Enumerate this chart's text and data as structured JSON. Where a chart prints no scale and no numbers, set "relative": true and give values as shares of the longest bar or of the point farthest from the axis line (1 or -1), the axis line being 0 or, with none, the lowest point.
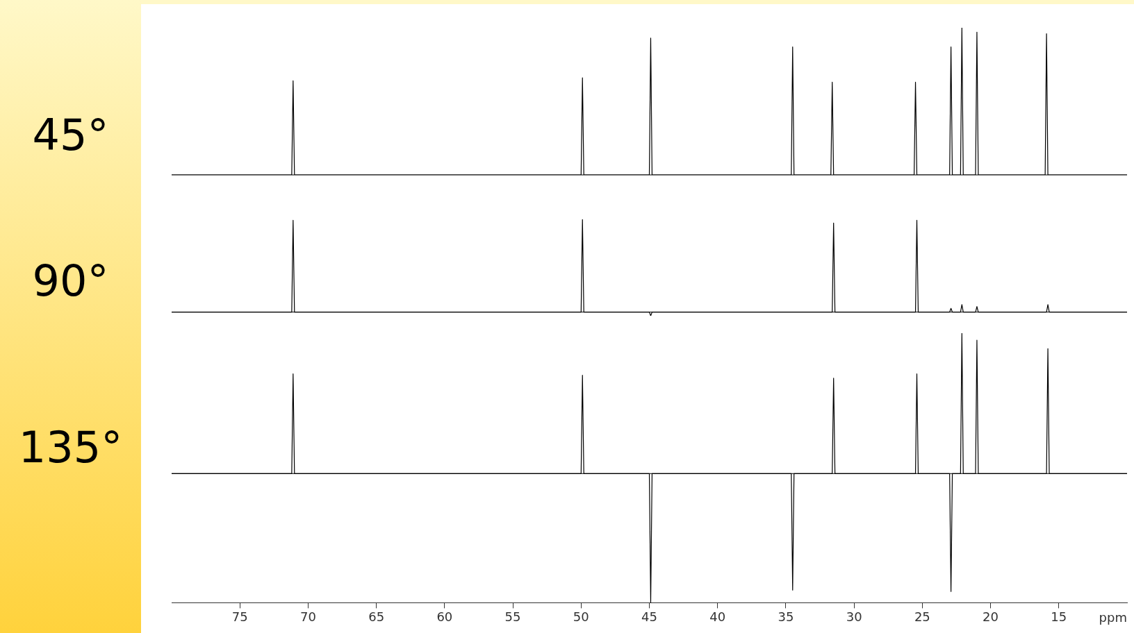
{
  "chart_data": [
    {
      "type": "line",
      "ylabel": "45°",
      "relative": true,
      "xlim": [
        80,
        10
      ],
      "tick_labels": false,
      "marker": "none",
      "line_style": "solid",
      "series": [
        {
          "color": "#000000",
          "x": [
            80,
            71.2,
            71.1,
            71.0,
            50.0,
            49.9,
            49.8,
            45.0,
            44.9,
            44.8,
            34.6,
            34.5,
            34.4,
            31.7,
            31.6,
            31.5,
            25.6,
            25.5,
            25.4,
            23.0,
            22.9,
            22.8,
            22.2,
            22.1,
            22.0,
            21.1,
            21.0,
            20.9,
            16.0,
            15.9,
            15.8,
            10
          ],
          "values": [
            0,
            0,
            0.64,
            0,
            0,
            0.66,
            0,
            0,
            0.93,
            0,
            0,
            0.87,
            0,
            0,
            0.63,
            0,
            0,
            0.63,
            0,
            0,
            0.87,
            0,
            0,
            1,
            0,
            0,
            0.97,
            0,
            0,
            0.96,
            0,
            0
          ]
        }
      ]
    },
    {
      "type": "line",
      "ylabel": "90°",
      "relative": true,
      "xlim": [
        80,
        10
      ],
      "tick_labels": false,
      "marker": "none",
      "line_style": "solid",
      "series": [
        {
          "color": "#000000",
          "x": [
            80,
            71.2,
            71.1,
            71.0,
            50.0,
            49.9,
            49.8,
            45.0,
            44.9,
            44.8,
            31.6,
            31.5,
            31.4,
            25.5,
            25.4,
            25.3,
            23.0,
            22.9,
            22.8,
            22.2,
            22.1,
            22.0,
            21.1,
            21.0,
            20.9,
            15.9,
            15.8,
            15.7,
            10
          ],
          "values": [
            0,
            0,
            0.99,
            0,
            0,
            1,
            0,
            0,
            -0.04,
            0,
            0,
            0.96,
            0,
            0,
            0.99,
            0,
            0,
            0.04,
            0,
            0,
            0.08,
            0,
            0,
            0.06,
            0,
            0,
            0.08,
            0,
            0
          ]
        }
      ]
    },
    {
      "type": "line",
      "ylabel": "135°",
      "xlabel": "ppm",
      "relative": true,
      "xlim": [
        80,
        10
      ],
      "xticks": [
        75,
        70,
        65,
        60,
        55,
        50,
        45,
        40,
        35,
        30,
        25,
        20,
        15
      ],
      "tick_labels": "x",
      "marker": "none",
      "line_style": "solid",
      "series": [
        {
          "color": "#000000",
          "x": [
            80,
            71.2,
            71.1,
            71.0,
            50.0,
            49.9,
            49.8,
            45.0,
            44.9,
            44.8,
            34.6,
            34.5,
            34.4,
            31.6,
            31.5,
            31.4,
            25.5,
            25.4,
            25.3,
            23.0,
            22.9,
            22.8,
            22.2,
            22.1,
            22.0,
            21.1,
            21.0,
            20.9,
            15.9,
            15.8,
            15.7,
            10
          ],
          "values": [
            0,
            0,
            0.71,
            0,
            0,
            0.7,
            0,
            0,
            -0.92,
            0,
            0,
            -0.83,
            0,
            0,
            0.68,
            0,
            0,
            0.71,
            0,
            0,
            -0.84,
            0,
            0,
            1,
            0,
            0,
            0.95,
            0,
            0,
            0.89,
            0,
            0
          ]
        }
      ]
    }
  ]
}
